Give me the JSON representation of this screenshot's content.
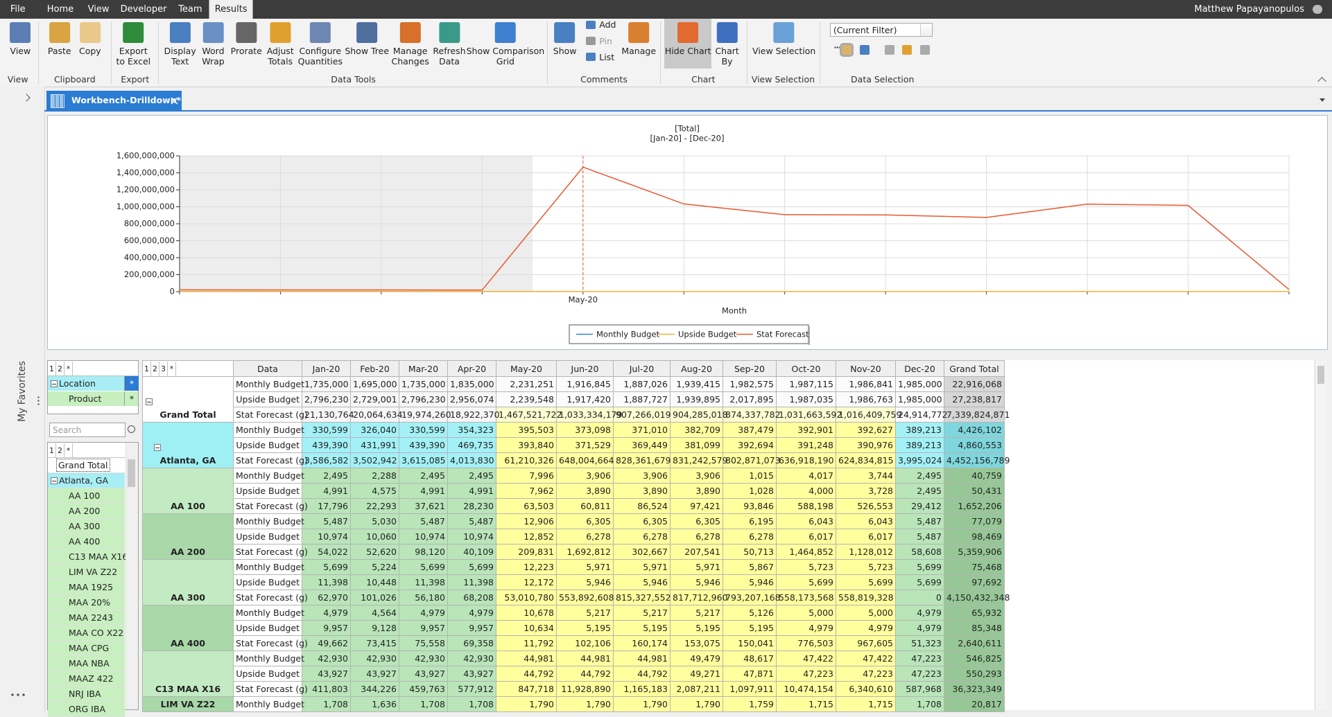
{
  "menu": [
    "File",
    "Home",
    "View",
    "Developer",
    "Team",
    "Results"
  ],
  "active_menu": 5,
  "user": "Matthew Papayanopulos",
  "ribbon": [
    {
      "label": "View",
      "buttons": [
        [
          "View"
        ]
      ]
    },
    {
      "label": "Clipboard",
      "buttons": [
        [
          "Paste"
        ],
        [
          "Copy"
        ]
      ]
    },
    {
      "label": "Export",
      "buttons": [
        [
          "Export",
          "to Excel"
        ]
      ]
    },
    {
      "label": "Data Tools",
      "buttons": [
        [
          "Display",
          "Text"
        ],
        [
          "Word",
          "Wrap"
        ],
        [
          "Prorate"
        ],
        [
          "Adjust",
          "Totals"
        ],
        [
          "Configure",
          "Quantities"
        ],
        [
          "Show Tree"
        ],
        [
          "Manage",
          "Changes"
        ],
        [
          "Refresh",
          "Data"
        ],
        [
          "Show Comparison",
          "Grid"
        ]
      ]
    },
    {
      "label": "Comments",
      "buttons": [
        [
          "Show"
        ],
        [
          "Add"
        ],
        [
          "Pin"
        ],
        [
          "List"
        ],
        [
          "Manage"
        ]
      ]
    },
    {
      "label": "Chart",
      "buttons": [
        [
          "Hide Chart"
        ],
        [
          "Chart",
          "By"
        ]
      ]
    },
    {
      "label": "View Selection",
      "buttons": [
        [
          "View Selection"
        ]
      ]
    },
    {
      "label": "Data Selection",
      "filter": "(Current Filter)"
    }
  ],
  "sidebar": "My Favorites",
  "tab": "Workbench-Drilldown*",
  "chart_data": {
    "type": "line",
    "title": "[Total]",
    "subtitle": "[Jan-20] - [Dec-20]",
    "x_label": "Month",
    "categories": [
      null,
      null,
      null,
      null,
      "May-20",
      null,
      null,
      null,
      null,
      null,
      null,
      null
    ],
    "ylim": [
      0,
      1600000000
    ],
    "yticks": [
      0,
      {
        "value": 200000000,
        "label": "200,000,000"
      },
      {
        "value": 400000000,
        "label": "400,000,000"
      },
      {
        "value": 600000000,
        "label": "600,000,000"
      },
      {
        "value": 800000000,
        "label": "800,000,000"
      },
      {
        "value": 1000000000,
        "label": "1,000,000,000"
      },
      {
        "value": 1200000000,
        "label": "1,200,000,000"
      },
      {
        "value": 1400000000,
        "label": "1,400,000,000"
      },
      {
        "value": 1600000000,
        "label": "1,600,000,000"
      }
    ],
    "grid": true,
    "legend": "bottom",
    "series": [
      {
        "name": "Monthly Budget",
        "color": "#3b7dd8",
        "values": [
          1735000,
          1695000,
          1735000,
          1835000,
          2231251,
          1916845,
          1887026,
          1939415,
          1982575,
          1987115,
          1986841,
          1985000
        ]
      },
      {
        "name": "Upside Budget",
        "color": "#f2b233",
        "values": [
          2796230,
          2729001,
          2796230,
          2956074,
          2239548,
          1917420,
          1887727,
          1939895,
          2017895,
          1987035,
          1986763,
          1985000
        ]
      },
      {
        "name": "Stat Forecast",
        "color": "#e8582e",
        "values": [
          21130764,
          20064634,
          19974260,
          18922370,
          1467521722,
          1033334179,
          907266019,
          904285018,
          874337782,
          1031663592,
          1016409759,
          24914772
        ]
      }
    ]
  },
  "pivot": {
    "levels": [
      "1",
      "2",
      "*"
    ],
    "fields": [
      {
        "name": "Location",
        "marker": "*"
      },
      {
        "name": "Product",
        "marker": "*"
      }
    ],
    "search": "Search",
    "tree_levels": [
      "1",
      "2",
      "*"
    ],
    "tree": [
      "Grand Total",
      "Atlanta, GA",
      "AA 100",
      "AA 200",
      "AA 300",
      "AA 400",
      "C13 MAA X16",
      "LIM VA Z22",
      "MAA 1925",
      "MAA 20%",
      "MAA 2243",
      "MAA CO X22",
      "MAA CPG",
      "MAA NBA",
      "MAAZ 422",
      "NRJ IBA",
      "ORG IBA"
    ]
  },
  "table": {
    "levels": [
      "1",
      "2",
      "3",
      "*"
    ],
    "header": [
      "Data",
      "Jan-20",
      "Feb-20",
      "Mar-20",
      "Apr-20",
      "May-20",
      "Jun-20",
      "Jul-20",
      "Aug-20",
      "Sep-20",
      "Oct-20",
      "Nov-20",
      "Dec-20",
      "Grand Total"
    ],
    "groups": [
      {
        "name": "Grand Total",
        "rows": [
          {
            "label": "Monthly Budget",
            "cells": [
              "1,735,000",
              "1,695,000",
              "1,735,000",
              "1,835,000",
              "2,231,251",
              "1,916,845",
              "1,887,026",
              "1,939,415",
              "1,982,575",
              "1,987,115",
              "1,986,841",
              "1,985,000",
              "22,916,068"
            ]
          },
          {
            "label": "Upside Budget",
            "cells": [
              "2,796,230",
              "2,729,001",
              "2,796,230",
              "2,956,074",
              "2,239,548",
              "1,917,420",
              "1,887,727",
              "1,939,895",
              "2,017,895",
              "1,987,035",
              "1,986,763",
              "1,985,000",
              "27,238,817"
            ]
          },
          {
            "label": "Stat Forecast (g)",
            "cells": [
              "21,130,764",
              "20,064,634",
              "19,974,260",
              "18,922,370",
              "1,467,521,722",
              "1,033,334,179",
              "907,266,019",
              "904,285,018",
              "874,337,782",
              "1,031,663,592",
              "1,016,409,759",
              "24,914,772",
              "7,339,824,871"
            ]
          }
        ]
      },
      {
        "name": "Atlanta, GA",
        "rows": [
          {
            "label": "Monthly Budget",
            "cells": [
              "330,599",
              "326,040",
              "330,599",
              "354,323",
              "395,503",
              "373,098",
              "371,010",
              "382,709",
              "387,479",
              "392,901",
              "392,627",
              "389,213",
              "4,426,102"
            ]
          },
          {
            "label": "Upside Budget",
            "cells": [
              "439,390",
              "431,991",
              "439,390",
              "469,735",
              "393,840",
              "371,529",
              "369,449",
              "381,099",
              "392,694",
              "391,248",
              "390,976",
              "389,213",
              "4,860,553"
            ]
          },
          {
            "label": "Stat Forecast (g)",
            "cells": [
              "3,586,582",
              "3,502,942",
              "3,615,085",
              "4,013,830",
              "61,210,326",
              "648,004,664",
              "828,361,679",
              "831,242,579",
              "802,871,073",
              "636,918,190",
              "624,834,815",
              "3,995,024",
              "4,452,156,789"
            ]
          }
        ]
      },
      {
        "name": "AA 100",
        "rows": [
          {
            "label": "Monthly Budget",
            "cells": [
              "2,495",
              "2,288",
              "2,495",
              "2,495",
              "7,996",
              "3,906",
              "3,906",
              "3,906",
              "1,015",
              "4,017",
              "3,744",
              "2,495",
              "40,759"
            ]
          },
          {
            "label": "Upside Budget",
            "cells": [
              "4,991",
              "4,575",
              "4,991",
              "4,991",
              "7,962",
              "3,890",
              "3,890",
              "3,890",
              "1,028",
              "4,000",
              "3,728",
              "2,495",
              "50,431"
            ]
          },
          {
            "label": "Stat Forecast (g)",
            "cells": [
              "17,796",
              "22,293",
              "37,621",
              "28,230",
              "63,503",
              "60,811",
              "86,524",
              "97,421",
              "93,846",
              "588,198",
              "526,553",
              "29,412",
              "1,652,206"
            ]
          }
        ]
      },
      {
        "name": "AA 200",
        "rows": [
          {
            "label": "Monthly Budget",
            "cells": [
              "5,487",
              "5,030",
              "5,487",
              "5,487",
              "12,906",
              "6,305",
              "6,305",
              "6,305",
              "6,195",
              "6,043",
              "6,043",
              "5,487",
              "77,079"
            ]
          },
          {
            "label": "Upside Budget",
            "cells": [
              "10,974",
              "10,060",
              "10,974",
              "10,974",
              "12,852",
              "6,278",
              "6,278",
              "6,278",
              "6,278",
              "6,017",
              "6,017",
              "5,487",
              "98,469"
            ]
          },
          {
            "label": "Stat Forecast (g)",
            "cells": [
              "54,022",
              "52,620",
              "98,120",
              "40,109",
              "209,831",
              "1,692,812",
              "302,667",
              "207,541",
              "50,713",
              "1,464,852",
              "1,128,012",
              "58,608",
              "5,359,906"
            ]
          }
        ]
      },
      {
        "name": "AA 300",
        "rows": [
          {
            "label": "Monthly Budget",
            "cells": [
              "5,699",
              "5,224",
              "5,699",
              "5,699",
              "12,223",
              "5,971",
              "5,971",
              "5,971",
              "5,867",
              "5,723",
              "5,723",
              "5,699",
              "75,468"
            ]
          },
          {
            "label": "Upside Budget",
            "cells": [
              "11,398",
              "10,448",
              "11,398",
              "11,398",
              "12,172",
              "5,946",
              "5,946",
              "5,946",
              "5,946",
              "5,699",
              "5,699",
              "5,699",
              "97,692"
            ]
          },
          {
            "label": "Stat Forecast (g)",
            "cells": [
              "62,970",
              "101,026",
              "56,180",
              "68,208",
              "53,010,780",
              "553,892,608",
              "815,327,552",
              "817,712,960",
              "793,207,168",
              "558,173,568",
              "558,819,328",
              "0",
              "4,150,432,348"
            ]
          }
        ]
      },
      {
        "name": "AA 400",
        "rows": [
          {
            "label": "Monthly Budget",
            "cells": [
              "4,979",
              "4,564",
              "4,979",
              "4,979",
              "10,678",
              "5,217",
              "5,217",
              "5,217",
              "5,126",
              "5,000",
              "5,000",
              "4,979",
              "65,932"
            ]
          },
          {
            "label": "Upside Budget",
            "cells": [
              "9,957",
              "9,128",
              "9,957",
              "9,957",
              "10,634",
              "5,195",
              "5,195",
              "5,195",
              "5,195",
              "4,979",
              "4,979",
              "4,979",
              "85,348"
            ]
          },
          {
            "label": "Stat Forecast (g)",
            "cells": [
              "49,662",
              "73,415",
              "75,558",
              "69,358",
              "11,792",
              "102,106",
              "160,174",
              "153,075",
              "150,041",
              "776,503",
              "967,605",
              "51,323",
              "2,640,611"
            ]
          }
        ]
      },
      {
        "name": "C13 MAA X16",
        "rows": [
          {
            "label": "Monthly Budget",
            "cells": [
              "42,930",
              "42,930",
              "42,930",
              "42,930",
              "44,981",
              "44,981",
              "44,981",
              "49,479",
              "48,617",
              "47,422",
              "47,422",
              "47,223",
              "546,825"
            ]
          },
          {
            "label": "Upside Budget",
            "cells": [
              "43,927",
              "43,927",
              "43,927",
              "43,927",
              "44,792",
              "44,792",
              "44,792",
              "49,271",
              "47,871",
              "47,223",
              "47,223",
              "47,223",
              "550,293"
            ]
          },
          {
            "label": "Stat Forecast (g)",
            "cells": [
              "411,803",
              "344,226",
              "459,763",
              "577,912",
              "847,718",
              "11,928,890",
              "1,165,183",
              "2,087,211",
              "1,097,911",
              "10,474,154",
              "6,340,610",
              "587,968",
              "36,323,349"
            ]
          }
        ]
      },
      {
        "name": "LIM VA Z22",
        "rows": [
          {
            "label": "Monthly Budget",
            "cells": [
              "1,708",
              "1,636",
              "1,708",
              "1,708",
              "1,790",
              "1,790",
              "1,790",
              "1,790",
              "1,759",
              "1,715",
              "1,715",
              "1,708",
              "20,817"
            ]
          }
        ]
      }
    ]
  }
}
